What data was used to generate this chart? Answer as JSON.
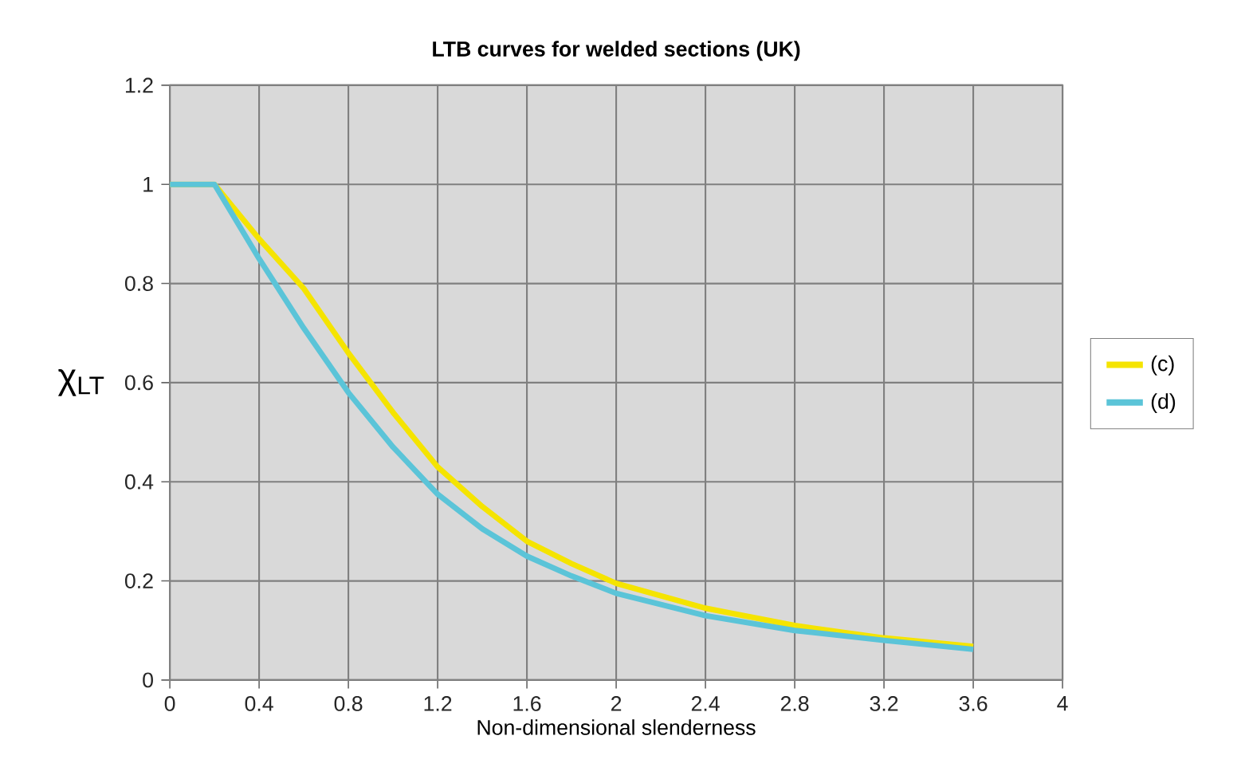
{
  "chart_data": {
    "type": "line",
    "title": "LTB curves for welded sections (UK)",
    "xlabel": "Non-dimensional slenderness",
    "ylabel": "χ$_{LT}$",
    "x": [
      0,
      0.2,
      0.4,
      0.6,
      0.8,
      1.0,
      1.2,
      1.4,
      1.6,
      1.8,
      2.0,
      2.4,
      2.8,
      3.2,
      3.6
    ],
    "series": [
      {
        "name": "(c)",
        "color": "#f5e400",
        "values": [
          1,
          1,
          0.89,
          0.79,
          0.66,
          0.54,
          0.43,
          0.35,
          0.28,
          0.235,
          0.195,
          0.145,
          0.11,
          0.085,
          0.068
        ]
      },
      {
        "name": "(d)",
        "color": "#5bc4d8",
        "values": [
          1,
          1,
          0.85,
          0.71,
          0.58,
          0.47,
          0.375,
          0.305,
          0.25,
          0.21,
          0.175,
          0.13,
          0.1,
          0.08,
          0.062
        ]
      }
    ],
    "xlim": [
      0,
      4
    ],
    "xticks": [
      0,
      0.4,
      0.8,
      1.2,
      1.6,
      2,
      2.4,
      2.8,
      3.2,
      3.6,
      4
    ],
    "ylim": [
      0,
      1.2
    ],
    "yticks": [
      0,
      0.2,
      0.4,
      0.6,
      0.8,
      1,
      1.2
    ],
    "grid": true,
    "legend": "right",
    "marker": "none",
    "line_style": "solid"
  }
}
